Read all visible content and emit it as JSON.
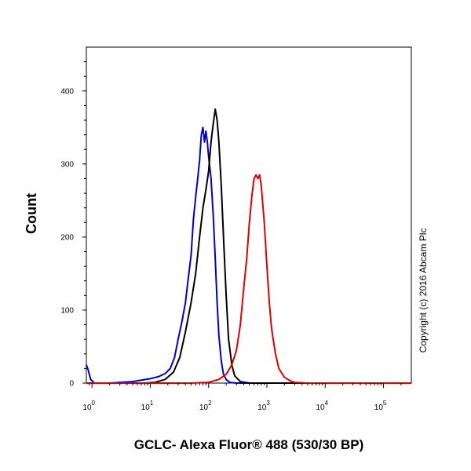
{
  "chart_data": {
    "type": "line",
    "xlabel": "GCLC- Alexa Fluor® 488 (530/30 BP)",
    "ylabel": "Count",
    "x_scale": "log",
    "xlim": [
      0.8,
      300000
    ],
    "ylim": [
      0,
      460
    ],
    "x_ticks": [
      {
        "value": 1,
        "base": "10",
        "exp": "0"
      },
      {
        "value": 10,
        "base": "10",
        "exp": "1"
      },
      {
        "value": 100,
        "base": "10",
        "exp": "2"
      },
      {
        "value": 1000,
        "base": "10",
        "exp": "3"
      },
      {
        "value": 10000,
        "base": "10",
        "exp": "4"
      },
      {
        "value": 100000,
        "base": "10",
        "exp": "5"
      }
    ],
    "y_ticks": [
      {
        "value": 0,
        "label": "0"
      },
      {
        "value": 100,
        "label": "100"
      },
      {
        "value": 200,
        "label": "200"
      },
      {
        "value": 300,
        "label": "300"
      },
      {
        "value": 400,
        "label": "400"
      }
    ],
    "series": [
      {
        "color": "#0000cc",
        "x": [
          0.8,
          0.86,
          0.95,
          1.1,
          2,
          3,
          5,
          7,
          10,
          14,
          18,
          22,
          26,
          30,
          35,
          40,
          45,
          50,
          55,
          60,
          65,
          70,
          75,
          80,
          85,
          90,
          95,
          100,
          110,
          120,
          130,
          140,
          150,
          165,
          180,
          200,
          230,
          300,
          1000,
          300000
        ],
        "y": [
          25,
          18,
          5,
          0,
          0,
          1,
          2,
          4,
          6,
          9,
          13,
          20,
          35,
          60,
          85,
          110,
          145,
          175,
          225,
          255,
          280,
          305,
          340,
          350,
          330,
          345,
          330,
          310,
          280,
          230,
          170,
          110,
          65,
          30,
          12,
          5,
          1,
          0,
          0,
          0
        ]
      },
      {
        "color": "#000000",
        "x": [
          0.8,
          1,
          5,
          8,
          12,
          18,
          25,
          32,
          40,
          50,
          60,
          70,
          80,
          90,
          100,
          110,
          120,
          130,
          140,
          150,
          165,
          180,
          200,
          220,
          250,
          280,
          350,
          500,
          300000
        ],
        "y": [
          0,
          0,
          0,
          0,
          1,
          5,
          15,
          35,
          70,
          110,
          150,
          200,
          240,
          265,
          290,
          330,
          355,
          375,
          360,
          330,
          270,
          200,
          120,
          60,
          25,
          10,
          2,
          0,
          0
        ]
      },
      {
        "color": "#dd0000",
        "x": [
          0.8,
          50,
          100,
          150,
          200,
          250,
          300,
          350,
          400,
          450,
          500,
          550,
          600,
          650,
          700,
          750,
          800,
          900,
          1000,
          1100,
          1200,
          1400,
          1600,
          2000,
          2500,
          3000,
          5000,
          300000
        ],
        "y": [
          0,
          0,
          1,
          5,
          12,
          25,
          45,
          80,
          130,
          170,
          220,
          255,
          280,
          285,
          280,
          285,
          270,
          220,
          160,
          110,
          75,
          40,
          20,
          8,
          3,
          1,
          0,
          0
        ]
      }
    ],
    "annotations": [
      {
        "text": "Copyright (c) 2016 Abcam Plc"
      }
    ]
  }
}
